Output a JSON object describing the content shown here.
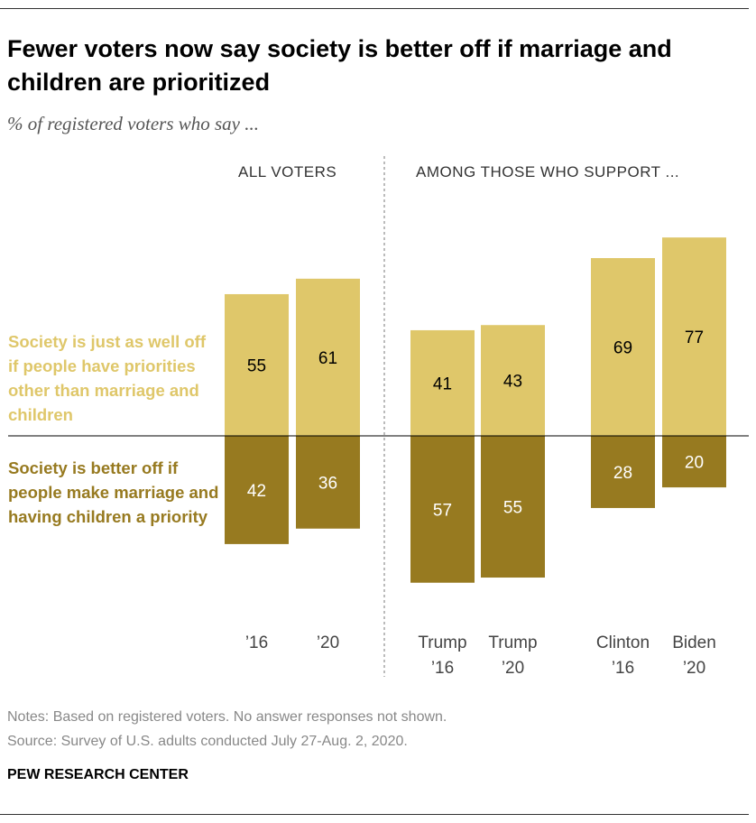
{
  "title": "Fewer voters now say society is better off if marriage and children are prioritized",
  "subtitle": "% of registered voters who say ...",
  "chart_data": {
    "type": "bar",
    "layout": "diverging stacked",
    "groups": [
      "ALL VOTERS",
      "AMONG THOSE WHO SUPPORT ..."
    ],
    "categories": [
      [
        "’16"
      ],
      [
        "’20"
      ],
      [
        "Trump",
        "’16"
      ],
      [
        "Trump",
        "’20"
      ],
      [
        "Clinton",
        "’16"
      ],
      [
        "Biden",
        "’20"
      ]
    ],
    "category_groups": [
      0,
      0,
      1,
      1,
      1,
      1
    ],
    "series": [
      {
        "name": "Society is just as well off if people have priorities other than marriage and children",
        "color": "#dfc76a",
        "direction": "up",
        "label_color": "#000000",
        "values": [
          55,
          61,
          41,
          43,
          69,
          77
        ]
      },
      {
        "name": "Society is better off if people make marriage and having children a priority",
        "color": "#977a20",
        "direction": "down",
        "label_color": "#ffffff",
        "values": [
          42,
          36,
          57,
          55,
          28,
          20
        ]
      }
    ],
    "grid": false
  },
  "notes": "Notes: Based on registered voters. No answer responses not shown.",
  "source": "Source: Survey of U.S. adults conducted July 27-Aug. 2, 2020.",
  "brand": "PEW RESEARCH CENTER"
}
